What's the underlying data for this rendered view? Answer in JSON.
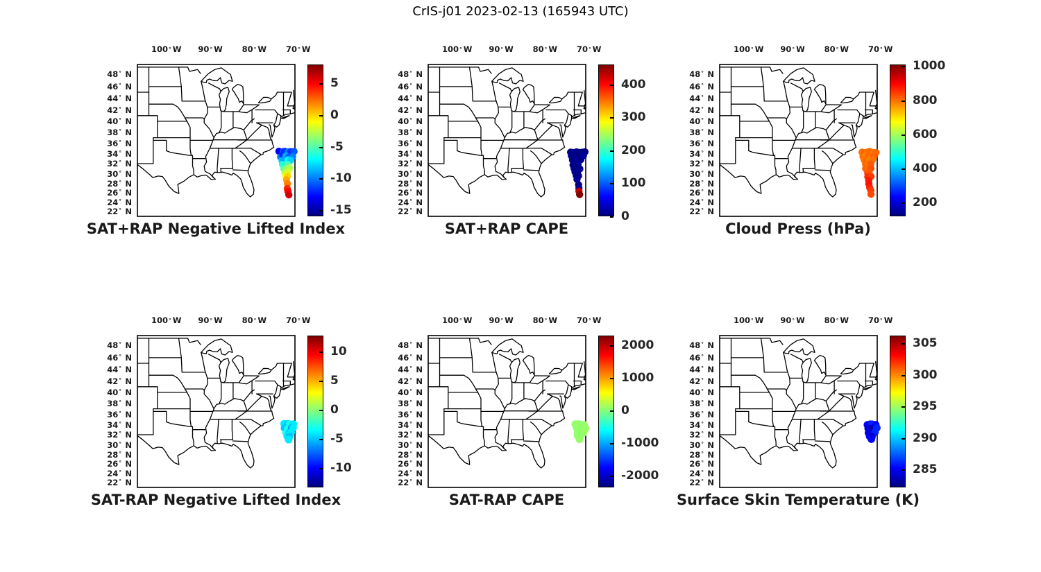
{
  "figure": {
    "title": "CrIS-j01 2023-02-13 (165943 UTC)"
  },
  "axes": {
    "lon_ticks": [
      100,
      90,
      80,
      70
    ],
    "lat_ticks": [
      48,
      46,
      44,
      42,
      40,
      38,
      36,
      34,
      32,
      30,
      28,
      26,
      24,
      22
    ],
    "degree_symbol": "°",
    "lon_hemisphere": "W",
    "lat_hemisphere": "N"
  },
  "chart_data": [
    {
      "type": "scatter",
      "title": "SAT+RAP Negative Lifted Index",
      "colormap": "jet",
      "colorbar": {
        "vmin": -16,
        "vmax": 8,
        "tick_values": [
          5,
          0,
          -5,
          -10,
          -15
        ],
        "tick_labels": [
          "5",
          "0",
          "-5",
          "-10",
          "-15"
        ]
      },
      "points": [
        {
          "lon": 74.2,
          "lat": 34.3,
          "v": -13
        },
        {
          "lon": 73.55,
          "lat": 34.3,
          "v": -11
        },
        {
          "lon": 72.9,
          "lat": 34.3,
          "v": -12
        },
        {
          "lon": 72.25,
          "lat": 34.3,
          "v": -10
        },
        {
          "lon": 71.6,
          "lat": 34.3,
          "v": -12
        },
        {
          "lon": 70.95,
          "lat": 34.3,
          "v": -11
        },
        {
          "lon": 74.05,
          "lat": 33.5,
          "v": -10
        },
        {
          "lon": 73.4,
          "lat": 33.5,
          "v": -12
        },
        {
          "lon": 72.75,
          "lat": 33.5,
          "v": -9
        },
        {
          "lon": 72.1,
          "lat": 33.5,
          "v": -11
        },
        {
          "lon": 71.45,
          "lat": 33.5,
          "v": -10
        },
        {
          "lon": 73.8,
          "lat": 32.7,
          "v": -8
        },
        {
          "lon": 73.15,
          "lat": 32.7,
          "v": -9
        },
        {
          "lon": 72.5,
          "lat": 32.7,
          "v": -7
        },
        {
          "lon": 71.85,
          "lat": 32.7,
          "v": -8
        },
        {
          "lon": 73.55,
          "lat": 31.9,
          "v": -6
        },
        {
          "lon": 72.95,
          "lat": 31.9,
          "v": -7
        },
        {
          "lon": 72.35,
          "lat": 31.9,
          "v": -5
        },
        {
          "lon": 73.3,
          "lat": 31.1,
          "v": -5
        },
        {
          "lon": 72.7,
          "lat": 31.1,
          "v": -4
        },
        {
          "lon": 72.1,
          "lat": 31.1,
          "v": -3
        },
        {
          "lon": 73.05,
          "lat": 30.3,
          "v": -3
        },
        {
          "lon": 72.45,
          "lat": 30.3,
          "v": -2
        },
        {
          "lon": 72.8,
          "lat": 29.5,
          "v": -1
        },
        {
          "lon": 72.3,
          "lat": 29.5,
          "v": 0
        },
        {
          "lon": 72.6,
          "lat": 28.7,
          "v": 1
        },
        {
          "lon": 72.45,
          "lat": 27.9,
          "v": 2
        },
        {
          "lon": 72.3,
          "lat": 27.1,
          "v": 4
        },
        {
          "lon": 72.2,
          "lat": 26.4,
          "v": 5
        },
        {
          "lon": 72.1,
          "lat": 25.8,
          "v": 6
        }
      ]
    },
    {
      "type": "scatter",
      "title": "SAT+RAP CAPE",
      "colormap": "jet",
      "colorbar": {
        "vmin": 0,
        "vmax": 460,
        "tick_values": [
          400,
          300,
          200,
          100,
          0
        ],
        "tick_labels": [
          "400",
          "300",
          "200",
          "100",
          "0"
        ]
      },
      "points": [
        {
          "lon": 74.2,
          "lat": 34.3,
          "v": 0
        },
        {
          "lon": 73.55,
          "lat": 34.3,
          "v": 5
        },
        {
          "lon": 72.9,
          "lat": 34.3,
          "v": 10
        },
        {
          "lon": 72.25,
          "lat": 34.3,
          "v": 0
        },
        {
          "lon": 71.6,
          "lat": 34.3,
          "v": 5
        },
        {
          "lon": 70.95,
          "lat": 34.3,
          "v": 0
        },
        {
          "lon": 74.05,
          "lat": 33.5,
          "v": 10
        },
        {
          "lon": 73.4,
          "lat": 33.5,
          "v": 0
        },
        {
          "lon": 72.75,
          "lat": 33.5,
          "v": 5
        },
        {
          "lon": 72.1,
          "lat": 33.5,
          "v": 0
        },
        {
          "lon": 71.45,
          "lat": 33.5,
          "v": 10
        },
        {
          "lon": 73.8,
          "lat": 32.7,
          "v": 5
        },
        {
          "lon": 73.15,
          "lat": 32.7,
          "v": 0
        },
        {
          "lon": 72.5,
          "lat": 32.7,
          "v": 10
        },
        {
          "lon": 71.85,
          "lat": 32.7,
          "v": 5
        },
        {
          "lon": 73.55,
          "lat": 31.9,
          "v": 0
        },
        {
          "lon": 72.95,
          "lat": 31.9,
          "v": 10
        },
        {
          "lon": 72.35,
          "lat": 31.9,
          "v": 5
        },
        {
          "lon": 73.3,
          "lat": 31.1,
          "v": 10
        },
        {
          "lon": 72.7,
          "lat": 31.1,
          "v": 0
        },
        {
          "lon": 72.1,
          "lat": 31.1,
          "v": 5
        },
        {
          "lon": 73.05,
          "lat": 30.3,
          "v": 0
        },
        {
          "lon": 72.45,
          "lat": 30.3,
          "v": 10
        },
        {
          "lon": 72.8,
          "lat": 29.5,
          "v": 5
        },
        {
          "lon": 72.3,
          "lat": 29.5,
          "v": 0
        },
        {
          "lon": 72.6,
          "lat": 28.7,
          "v": 10
        },
        {
          "lon": 72.45,
          "lat": 27.9,
          "v": 0
        },
        {
          "lon": 72.3,
          "lat": 27.1,
          "v": 10
        },
        {
          "lon": 72.2,
          "lat": 26.4,
          "v": 430
        },
        {
          "lon": 72.1,
          "lat": 25.8,
          "v": 460
        }
      ]
    },
    {
      "type": "scatter",
      "title": "Cloud Press (hPa)",
      "colormap": "jet",
      "colorbar": {
        "vmin": 120,
        "vmax": 1010,
        "tick_values": [
          1000,
          800,
          600,
          400,
          200
        ],
        "tick_labels": [
          "1000",
          "800",
          "600",
          "400",
          "200"
        ]
      },
      "points": [
        {
          "lon": 74.2,
          "lat": 34.3,
          "v": 800
        },
        {
          "lon": 73.55,
          "lat": 34.3,
          "v": 815
        },
        {
          "lon": 72.9,
          "lat": 34.3,
          "v": 795
        },
        {
          "lon": 72.25,
          "lat": 34.3,
          "v": 805
        },
        {
          "lon": 71.6,
          "lat": 34.3,
          "v": 790
        },
        {
          "lon": 70.95,
          "lat": 34.3,
          "v": 810
        },
        {
          "lon": 74.05,
          "lat": 33.5,
          "v": 805
        },
        {
          "lon": 73.4,
          "lat": 33.5,
          "v": 790
        },
        {
          "lon": 72.75,
          "lat": 33.5,
          "v": 810
        },
        {
          "lon": 72.1,
          "lat": 33.5,
          "v": 800
        },
        {
          "lon": 71.45,
          "lat": 33.5,
          "v": 815
        },
        {
          "lon": 73.8,
          "lat": 32.7,
          "v": 795
        },
        {
          "lon": 73.15,
          "lat": 32.7,
          "v": 805
        },
        {
          "lon": 72.5,
          "lat": 32.7,
          "v": 790
        },
        {
          "lon": 71.85,
          "lat": 32.7,
          "v": 800
        },
        {
          "lon": 73.55,
          "lat": 31.9,
          "v": 810
        },
        {
          "lon": 72.95,
          "lat": 31.9,
          "v": 795
        },
        {
          "lon": 72.35,
          "lat": 31.9,
          "v": 820
        },
        {
          "lon": 73.3,
          "lat": 31.1,
          "v": 815
        },
        {
          "lon": 72.7,
          "lat": 31.1,
          "v": 800
        },
        {
          "lon": 72.1,
          "lat": 31.1,
          "v": 830
        },
        {
          "lon": 73.05,
          "lat": 30.3,
          "v": 840
        },
        {
          "lon": 72.45,
          "lat": 30.3,
          "v": 820
        },
        {
          "lon": 72.8,
          "lat": 29.5,
          "v": 860
        },
        {
          "lon": 72.3,
          "lat": 29.5,
          "v": 845
        },
        {
          "lon": 72.6,
          "lat": 28.7,
          "v": 875
        },
        {
          "lon": 72.45,
          "lat": 27.9,
          "v": 885
        },
        {
          "lon": 72.3,
          "lat": 27.1,
          "v": 870
        },
        {
          "lon": 72.2,
          "lat": 26.4,
          "v": 850
        },
        {
          "lon": 72.1,
          "lat": 25.8,
          "v": 835
        }
      ]
    },
    {
      "type": "scatter",
      "title": "SAT-RAP Negative Lifted Index",
      "colormap": "jet",
      "colorbar": {
        "vmin": -13.3,
        "vmax": 12.7,
        "tick_values": [
          10,
          5,
          0,
          -5,
          -10
        ],
        "tick_labels": [
          "10",
          "5",
          "0",
          "-5",
          "-10"
        ]
      },
      "points": [
        {
          "lon": 73.1,
          "lat": 34.1,
          "v": -4
        },
        {
          "lon": 72.45,
          "lat": 34.1,
          "v": -5
        },
        {
          "lon": 71.8,
          "lat": 34.1,
          "v": -3
        },
        {
          "lon": 71.15,
          "lat": 34.1,
          "v": -4
        },
        {
          "lon": 72.95,
          "lat": 33.3,
          "v": -5
        },
        {
          "lon": 72.3,
          "lat": 33.3,
          "v": -3
        },
        {
          "lon": 71.65,
          "lat": 33.3,
          "v": -6
        },
        {
          "lon": 71.0,
          "lat": 33.3,
          "v": -4
        },
        {
          "lon": 72.75,
          "lat": 32.5,
          "v": -3
        },
        {
          "lon": 72.1,
          "lat": 32.5,
          "v": -5
        },
        {
          "lon": 71.45,
          "lat": 32.5,
          "v": -4
        },
        {
          "lon": 72.5,
          "lat": 31.8,
          "v": -4
        },
        {
          "lon": 71.9,
          "lat": 31.8,
          "v": -5
        },
        {
          "lon": 72.2,
          "lat": 31.2,
          "v": -4
        }
      ]
    },
    {
      "type": "scatter",
      "title": "SAT-RAP CAPE",
      "colormap": "jet",
      "colorbar": {
        "vmin": -2370,
        "vmax": 2300,
        "tick_values": [
          2000,
          1000,
          0,
          -1000,
          -2000
        ],
        "tick_labels": [
          "2000",
          "1000",
          "0",
          "-1000",
          "-2000"
        ]
      },
      "points": [
        {
          "lon": 73.1,
          "lat": 34.1,
          "v": 60
        },
        {
          "lon": 72.45,
          "lat": 34.1,
          "v": 90
        },
        {
          "lon": 71.8,
          "lat": 34.1,
          "v": 30
        },
        {
          "lon": 71.15,
          "lat": 34.1,
          "v": 70
        },
        {
          "lon": 72.95,
          "lat": 33.3,
          "v": 40
        },
        {
          "lon": 72.3,
          "lat": 33.3,
          "v": 100
        },
        {
          "lon": 71.65,
          "lat": 33.3,
          "v": 20
        },
        {
          "lon": 71.0,
          "lat": 33.3,
          "v": 80
        },
        {
          "lon": 72.75,
          "lat": 32.5,
          "v": 70
        },
        {
          "lon": 72.1,
          "lat": 32.5,
          "v": 30
        },
        {
          "lon": 71.45,
          "lat": 32.5,
          "v": 90
        },
        {
          "lon": 72.5,
          "lat": 31.8,
          "v": 50
        },
        {
          "lon": 71.9,
          "lat": 31.8,
          "v": 40
        },
        {
          "lon": 72.2,
          "lat": 31.2,
          "v": 60
        }
      ]
    },
    {
      "type": "scatter",
      "title": "Surface Skin Temperature (K)",
      "colormap": "jet",
      "colorbar": {
        "vmin": 282.2,
        "vmax": 306.2,
        "tick_values": [
          305,
          300,
          295,
          290,
          285
        ],
        "tick_labels": [
          "305",
          "300",
          "295",
          "290",
          "285"
        ]
      },
      "points": [
        {
          "lon": 73.1,
          "lat": 34.1,
          "v": 285
        },
        {
          "lon": 72.45,
          "lat": 34.1,
          "v": 284
        },
        {
          "lon": 71.8,
          "lat": 34.1,
          "v": 286
        },
        {
          "lon": 71.15,
          "lat": 34.1,
          "v": 285
        },
        {
          "lon": 72.95,
          "lat": 33.3,
          "v": 284
        },
        {
          "lon": 72.3,
          "lat": 33.3,
          "v": 285
        },
        {
          "lon": 71.65,
          "lat": 33.3,
          "v": 283
        },
        {
          "lon": 71.0,
          "lat": 33.3,
          "v": 286
        },
        {
          "lon": 72.75,
          "lat": 32.5,
          "v": 285
        },
        {
          "lon": 72.1,
          "lat": 32.5,
          "v": 284
        },
        {
          "lon": 71.45,
          "lat": 32.5,
          "v": 286
        },
        {
          "lon": 72.5,
          "lat": 31.8,
          "v": 285
        },
        {
          "lon": 71.9,
          "lat": 31.8,
          "v": 284
        },
        {
          "lon": 72.2,
          "lat": 31.2,
          "v": 285
        }
      ]
    }
  ]
}
